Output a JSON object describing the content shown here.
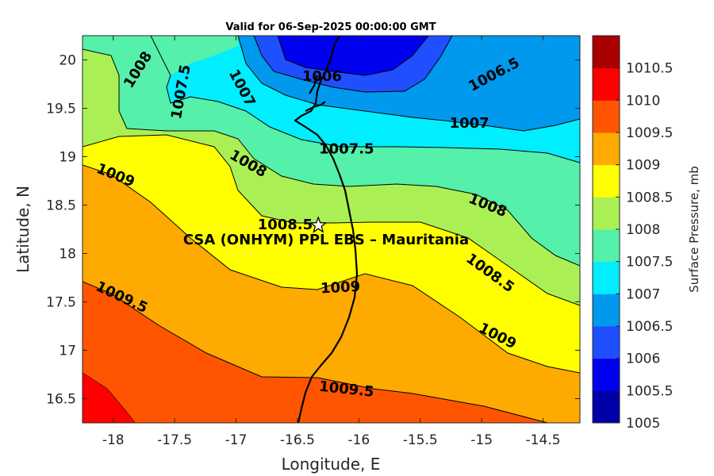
{
  "title": "Valid for 06-Sep-2025 00:00:00 GMT",
  "xlabel": "Longitude, E",
  "ylabel": "Latitude, N",
  "colorbar_label": "Surface Pressure, mb",
  "annotation": "CSA (ONHYM) PPL EBS  – Mauritania",
  "chart_data": {
    "type": "heatmap",
    "title": "Valid for 06-Sep-2025 00:00:00 GMT",
    "xlabel": "Longitude, E",
    "ylabel": "Latitude, N",
    "xlim": [
      -18.25,
      -14.2
    ],
    "ylim": [
      16.25,
      20.25
    ],
    "x_ticks": [
      "-18",
      "-17.5",
      "-17",
      "-16.5",
      "-16",
      "-15.5",
      "-15",
      "-14.5"
    ],
    "x_tick_values": [
      -18,
      -17.5,
      -17,
      -16.5,
      -16,
      -15.5,
      -15,
      -14.5
    ],
    "y_ticks": [
      "16.5",
      "17",
      "17.5",
      "18",
      "18.5",
      "19",
      "19.5",
      "20"
    ],
    "y_tick_values": [
      16.5,
      17,
      17.5,
      18,
      18.5,
      19,
      19.5,
      20
    ],
    "colorbar": {
      "label": "Surface Pressure, mb",
      "levels": [
        1005,
        1005.5,
        1006,
        1006.5,
        1007,
        1007.5,
        1008,
        1008.5,
        1009,
        1009.5,
        1010,
        1010.5
      ],
      "tick_labels": [
        "1005",
        "1005.5",
        "1006",
        "1006.5",
        "1007",
        "1007.5",
        "1008",
        "1008.5",
        "1009",
        "1009.5",
        "1010",
        "1010.5"
      ],
      "colors": [
        "#0000aa",
        "#0000f0",
        "#1f4fff",
        "#0099ee",
        "#00eeff",
        "#55f0aa",
        "#aaf055",
        "#ffff00",
        "#ffaa00",
        "#ff5500",
        "#ff0000",
        "#aa0000"
      ]
    },
    "contour_labels": [
      {
        "text": "1006.5",
        "lon": -14.9,
        "lat": 19.85,
        "angle": -28
      },
      {
        "text": "1007",
        "lon": -15.1,
        "lat": 19.35,
        "angle": 0
      },
      {
        "text": "1007.5",
        "lon": -16.1,
        "lat": 19.08,
        "angle": 0
      },
      {
        "text": "1008",
        "lon": -14.95,
        "lat": 18.5,
        "angle": 22
      },
      {
        "text": "1008.5",
        "lon": -14.93,
        "lat": 17.8,
        "angle": 36
      },
      {
        "text": "1009",
        "lon": -14.87,
        "lat": 17.15,
        "angle": 27
      },
      {
        "text": "1009.5",
        "lon": -16.1,
        "lat": 16.6,
        "angle": 6
      },
      {
        "text": "1009",
        "lon": -16.15,
        "lat": 17.65,
        "angle": -3
      },
      {
        "text": "1008.5",
        "lon": -16.6,
        "lat": 18.3,
        "angle": 0
      },
      {
        "text": "1008",
        "lon": -16.9,
        "lat": 18.93,
        "angle": 30
      },
      {
        "text": "1007",
        "lon": -16.95,
        "lat": 19.71,
        "angle": 62
      },
      {
        "text": "1007.5",
        "lon": -17.45,
        "lat": 19.67,
        "angle": -80
      },
      {
        "text": "1008",
        "lon": -17.8,
        "lat": 19.9,
        "angle": -58
      },
      {
        "text": "1009",
        "lon": -17.98,
        "lat": 18.81,
        "angle": 22
      },
      {
        "text": "1009.5",
        "lon": -17.93,
        "lat": 17.55,
        "angle": 25
      },
      {
        "text": "1006",
        "lon": -16.3,
        "lat": 19.83,
        "angle": 0
      }
    ],
    "site": {
      "name": "CSA (ONHYM) PPL EBS  – Mauritania",
      "lon": -16.33,
      "lat": 18.29
    },
    "grid": false,
    "colormap": "jet"
  }
}
